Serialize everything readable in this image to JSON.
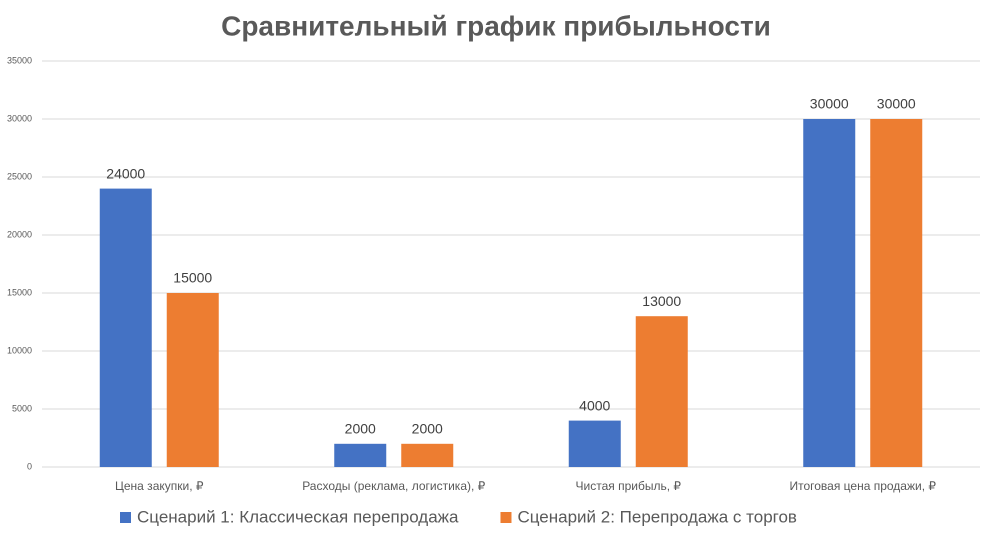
{
  "chart_data": {
    "type": "bar",
    "title": "Сравнительный график прибыльности",
    "categories": [
      "Цена закупки, ₽",
      "Расходы (реклама, логистика), ₽",
      "Чистая прибыль, ₽",
      "Итоговая цена продажи, ₽"
    ],
    "series": [
      {
        "name": "Сценарий 1: Классическая перепродажа",
        "color": "#4472c4",
        "values": [
          24000,
          2000,
          4000,
          30000
        ]
      },
      {
        "name": "Сценарий 2: Перепродажа с торгов",
        "color": "#ed7d31",
        "values": [
          15000,
          2000,
          13000,
          30000
        ]
      }
    ],
    "ylim": [
      0,
      35000
    ],
    "yticks": [
      0,
      5000,
      10000,
      15000,
      20000,
      25000,
      30000,
      35000
    ],
    "grid": true,
    "legend": "bottom"
  }
}
